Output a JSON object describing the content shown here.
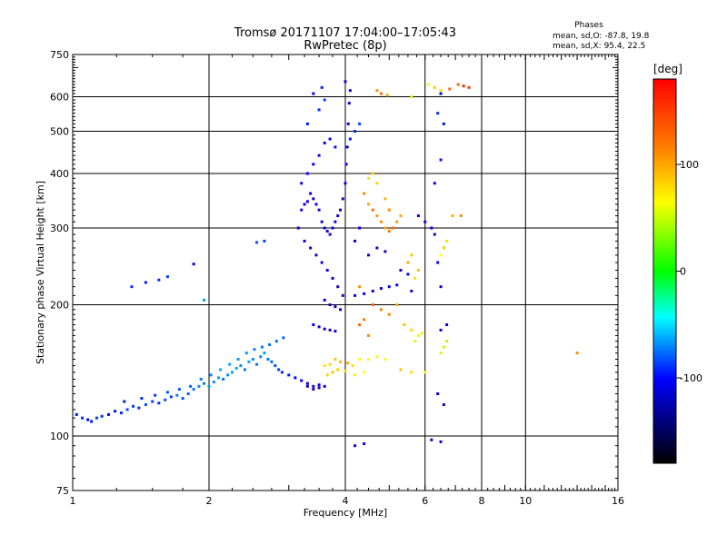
{
  "chart_data": {
    "type": "scatter",
    "title": "Tromsø 20171107 17:04:00–17:05:43",
    "subtitle": "RwPretec (8p)",
    "xlabel": "Frequency [MHz]",
    "ylabel": "Stationary phase Virtual Height [km]",
    "x_scale": "log",
    "y_scale": "log",
    "xlim": [
      1,
      16
    ],
    "ylim": [
      75,
      750
    ],
    "x_ticks": [
      1,
      2,
      4,
      6,
      8,
      10,
      16
    ],
    "y_ticks": [
      75,
      100,
      200,
      300,
      400,
      500,
      600,
      750
    ],
    "grid": true,
    "stats": {
      "heading": "Phases",
      "line_o": "mean, sd,O: -87.8, 19.8",
      "line_x": "mean, sd,X:  95.4, 22.5"
    },
    "colorbar": {
      "label": "[deg]",
      "range": [
        -180,
        180
      ],
      "ticks": [
        100,
        0,
        -100
      ],
      "colors": [
        "#ff0000",
        "#ff8000",
        "#ffff00",
        "#00ff00",
        "#00ffff",
        "#0000ff",
        "#000000"
      ]
    },
    "series": [
      {
        "group": "x-mode-upper",
        "points": [
          [
            4.7,
            620,
            140
          ],
          [
            4.8,
            610,
            150
          ],
          [
            4.95,
            605,
            130
          ],
          [
            5.6,
            600,
            60
          ],
          [
            6.1,
            640,
            100
          ],
          [
            6.3,
            630,
            120
          ],
          [
            6.5,
            620,
            110
          ],
          [
            6.8,
            625,
            150
          ],
          [
            7.1,
            640,
            150
          ],
          [
            7.3,
            635,
            170
          ],
          [
            7.5,
            630,
            165
          ]
        ]
      },
      {
        "group": "x-mode-E",
        "points": [
          [
            3.6,
            145,
            110
          ],
          [
            3.7,
            146,
            115
          ],
          [
            3.8,
            150,
            120
          ],
          [
            3.9,
            148,
            125
          ],
          [
            4.05,
            147,
            130
          ],
          [
            4.15,
            145,
            110
          ],
          [
            4.3,
            150,
            100
          ],
          [
            4.5,
            150,
            95
          ],
          [
            4.7,
            152,
            90
          ],
          [
            4.9,
            150,
            100
          ],
          [
            5.3,
            142,
            120
          ],
          [
            5.6,
            140,
            110
          ],
          [
            6.0,
            140,
            100
          ],
          [
            3.65,
            138,
            115
          ],
          [
            3.75,
            140,
            120
          ],
          [
            3.85,
            142,
            118
          ],
          [
            4.0,
            141,
            112
          ],
          [
            4.2,
            138,
            105
          ],
          [
            4.4,
            140,
            100
          ],
          [
            6.5,
            155,
            60
          ],
          [
            6.6,
            160,
            60
          ],
          [
            6.7,
            165,
            55
          ],
          [
            5.7,
            165,
            80
          ],
          [
            5.8,
            170,
            90
          ],
          [
            5.9,
            172,
            80
          ]
        ]
      },
      {
        "group": "x-mode-F",
        "points": [
          [
            4.4,
            360,
            140
          ],
          [
            4.5,
            340,
            130
          ],
          [
            4.6,
            330,
            150
          ],
          [
            4.7,
            320,
            135
          ],
          [
            4.8,
            310,
            140
          ],
          [
            4.9,
            300,
            130
          ],
          [
            5.0,
            295,
            145
          ],
          [
            5.1,
            300,
            150
          ],
          [
            5.2,
            310,
            135
          ],
          [
            5.3,
            320,
            130
          ],
          [
            4.5,
            390,
            110
          ],
          [
            4.6,
            400,
            120
          ],
          [
            4.7,
            380,
            115
          ],
          [
            4.9,
            350,
            125
          ],
          [
            5.0,
            330,
            140
          ],
          [
            5.5,
            250,
            130
          ],
          [
            5.6,
            260,
            120
          ],
          [
            5.7,
            230,
            110
          ],
          [
            5.8,
            240,
            120
          ],
          [
            4.3,
            220,
            140
          ],
          [
            4.6,
            200,
            150
          ],
          [
            4.8,
            195,
            145
          ],
          [
            5.0,
            190,
            140
          ],
          [
            5.2,
            200,
            130
          ],
          [
            4.3,
            180,
            150
          ],
          [
            4.4,
            185,
            145
          ],
          [
            4.5,
            170,
            140
          ],
          [
            5.4,
            180,
            120
          ],
          [
            5.6,
            175,
            115
          ],
          [
            6.5,
            260,
            100
          ],
          [
            6.6,
            270,
            120
          ],
          [
            6.7,
            280,
            110
          ],
          [
            6.9,
            320,
            130
          ],
          [
            7.2,
            320,
            140
          ]
        ]
      },
      {
        "group": "o-mode-low",
        "points": [
          [
            1.02,
            112,
            -85
          ],
          [
            1.05,
            110,
            -80
          ],
          [
            1.08,
            109,
            -90
          ],
          [
            1.1,
            108,
            -85
          ],
          [
            1.13,
            110,
            -75
          ],
          [
            1.16,
            111,
            -80
          ],
          [
            1.2,
            112,
            -90
          ],
          [
            1.24,
            114,
            -85
          ],
          [
            1.28,
            113,
            -80
          ],
          [
            1.32,
            115,
            -70
          ],
          [
            1.36,
            117,
            -75
          ],
          [
            1.4,
            116,
            -80
          ],
          [
            1.45,
            118,
            -70
          ],
          [
            1.5,
            120,
            -75
          ],
          [
            1.55,
            119,
            -80
          ],
          [
            1.6,
            121,
            -70
          ],
          [
            1.65,
            123,
            -75
          ],
          [
            1.7,
            124,
            -60
          ],
          [
            1.75,
            122,
            -70
          ],
          [
            1.8,
            125,
            -65
          ],
          [
            1.85,
            128,
            -60
          ],
          [
            1.9,
            130,
            -55
          ],
          [
            1.95,
            132,
            -60
          ],
          [
            2.0,
            130,
            -50
          ],
          [
            2.05,
            133,
            -55
          ],
          [
            2.1,
            136,
            -50
          ],
          [
            2.15,
            135,
            -60
          ],
          [
            2.2,
            138,
            -55
          ],
          [
            2.25,
            140,
            -50
          ],
          [
            2.3,
            143,
            -45
          ],
          [
            2.35,
            145,
            -55
          ],
          [
            2.4,
            142,
            -60
          ],
          [
            2.45,
            148,
            -50
          ],
          [
            2.5,
            150,
            -55
          ],
          [
            2.55,
            146,
            -60
          ],
          [
            2.6,
            152,
            -55
          ],
          [
            2.65,
            155,
            -50
          ],
          [
            2.7,
            150,
            -60
          ],
          [
            2.75,
            148,
            -65
          ],
          [
            2.8,
            145,
            -70
          ],
          [
            2.85,
            142,
            -75
          ],
          [
            2.9,
            140,
            -80
          ],
          [
            3.0,
            138,
            -85
          ],
          [
            3.1,
            136,
            -90
          ],
          [
            3.2,
            134,
            -95
          ],
          [
            3.3,
            132,
            -100
          ],
          [
            3.4,
            130,
            -100
          ],
          [
            3.5,
            131,
            -105
          ],
          [
            1.3,
            120,
            -85
          ],
          [
            1.42,
            122,
            -80
          ],
          [
            1.52,
            124,
            -75
          ],
          [
            1.62,
            126,
            -70
          ],
          [
            1.72,
            128,
            -68
          ],
          [
            1.82,
            130,
            -65
          ],
          [
            1.92,
            135,
            -60
          ],
          [
            2.02,
            138,
            -55
          ],
          [
            2.12,
            142,
            -50
          ],
          [
            2.22,
            146,
            -48
          ],
          [
            2.32,
            150,
            -50
          ],
          [
            2.42,
            155,
            -52
          ],
          [
            2.52,
            158,
            -55
          ],
          [
            2.62,
            160,
            -58
          ],
          [
            2.72,
            162,
            -60
          ],
          [
            2.82,
            165,
            -62
          ],
          [
            2.92,
            168,
            -65
          ],
          [
            1.35,
            220,
            -80
          ],
          [
            1.45,
            225,
            -85
          ],
          [
            1.55,
            228,
            -80
          ],
          [
            1.62,
            232,
            -75
          ],
          [
            1.85,
            248,
            -90
          ],
          [
            2.55,
            278,
            -70
          ],
          [
            2.65,
            280,
            -75
          ],
          [
            1.95,
            205,
            -50
          ]
        ]
      },
      {
        "group": "o-mode-F",
        "points": [
          [
            3.2,
            330,
            -100
          ],
          [
            3.25,
            340,
            -105
          ],
          [
            3.3,
            345,
            -95
          ],
          [
            3.35,
            360,
            -100
          ],
          [
            3.4,
            350,
            -110
          ],
          [
            3.45,
            340,
            -105
          ],
          [
            3.5,
            330,
            -100
          ],
          [
            3.55,
            310,
            -95
          ],
          [
            3.6,
            300,
            -100
          ],
          [
            3.65,
            295,
            -110
          ],
          [
            3.7,
            290,
            -105
          ],
          [
            3.75,
            300,
            -100
          ],
          [
            3.8,
            310,
            -95
          ],
          [
            3.85,
            320,
            -100
          ],
          [
            3.9,
            330,
            -105
          ],
          [
            3.95,
            350,
            -110
          ],
          [
            4.0,
            380,
            -100
          ],
          [
            4.02,
            420,
            -95
          ],
          [
            4.04,
            460,
            -100
          ],
          [
            4.06,
            520,
            -105
          ],
          [
            4.08,
            580,
            -110
          ],
          [
            4.1,
            620,
            -100
          ],
          [
            4.0,
            650,
            -105
          ],
          [
            3.4,
            420,
            -90
          ],
          [
            3.5,
            440,
            -95
          ],
          [
            3.6,
            470,
            -100
          ],
          [
            3.7,
            480,
            -90
          ],
          [
            3.8,
            460,
            -85
          ],
          [
            3.3,
            400,
            -95
          ],
          [
            3.2,
            380,
            -100
          ],
          [
            3.15,
            300,
            -95
          ],
          [
            3.25,
            280,
            -100
          ],
          [
            3.35,
            270,
            -105
          ],
          [
            3.45,
            260,
            -110
          ],
          [
            3.55,
            250,
            -100
          ],
          [
            3.65,
            240,
            -95
          ],
          [
            3.75,
            230,
            -100
          ],
          [
            3.85,
            220,
            -105
          ],
          [
            3.95,
            210,
            -110
          ],
          [
            3.5,
            560,
            -80
          ],
          [
            3.6,
            590,
            -75
          ],
          [
            3.55,
            630,
            -85
          ],
          [
            3.4,
            610,
            -90
          ],
          [
            3.3,
            520,
            -85
          ],
          [
            3.6,
            205,
            -100
          ],
          [
            3.7,
            200,
            -105
          ],
          [
            3.8,
            198,
            -110
          ],
          [
            3.9,
            195,
            -100
          ],
          [
            3.4,
            180,
            -95
          ],
          [
            3.5,
            178,
            -100
          ],
          [
            3.6,
            176,
            -105
          ],
          [
            3.7,
            175,
            -110
          ],
          [
            3.8,
            174,
            -100
          ],
          [
            4.2,
            210,
            -95
          ],
          [
            4.4,
            212,
            -100
          ],
          [
            4.6,
            215,
            -105
          ],
          [
            4.8,
            218,
            -110
          ],
          [
            5.0,
            220,
            -100
          ],
          [
            5.2,
            222,
            -95
          ],
          [
            4.2,
            500,
            -80
          ],
          [
            4.3,
            520,
            -75
          ],
          [
            4.1,
            480,
            -85
          ],
          [
            4.2,
            280,
            -100
          ],
          [
            4.3,
            300,
            -95
          ],
          [
            4.5,
            260,
            -100
          ],
          [
            4.7,
            270,
            -105
          ],
          [
            4.9,
            265,
            -110
          ],
          [
            5.3,
            240,
            -95
          ],
          [
            5.5,
            235,
            -90
          ],
          [
            5.6,
            215,
            -100
          ],
          [
            5.8,
            320,
            -95
          ],
          [
            6.0,
            310,
            -100
          ],
          [
            6.2,
            300,
            -105
          ],
          [
            6.3,
            290,
            -110
          ],
          [
            6.4,
            250,
            -95
          ],
          [
            6.5,
            220,
            -100
          ],
          [
            6.3,
            380,
            -90
          ],
          [
            6.5,
            430,
            -85
          ],
          [
            6.4,
            550,
            -80
          ],
          [
            6.5,
            610,
            -90
          ],
          [
            6.6,
            520,
            -85
          ],
          [
            6.5,
            175,
            -100
          ],
          [
            6.7,
            180,
            -95
          ],
          [
            6.4,
            125,
            -95
          ],
          [
            6.6,
            118,
            -100
          ],
          [
            3.3,
            130,
            -110
          ],
          [
            3.4,
            128,
            -115
          ],
          [
            3.5,
            129,
            -110
          ],
          [
            3.6,
            130,
            -100
          ],
          [
            4.2,
            95,
            -110
          ],
          [
            4.4,
            96,
            -100
          ],
          [
            6.2,
            98,
            -105
          ],
          [
            6.5,
            97,
            -90
          ],
          [
            13.0,
            155,
            140
          ]
        ]
      }
    ]
  }
}
